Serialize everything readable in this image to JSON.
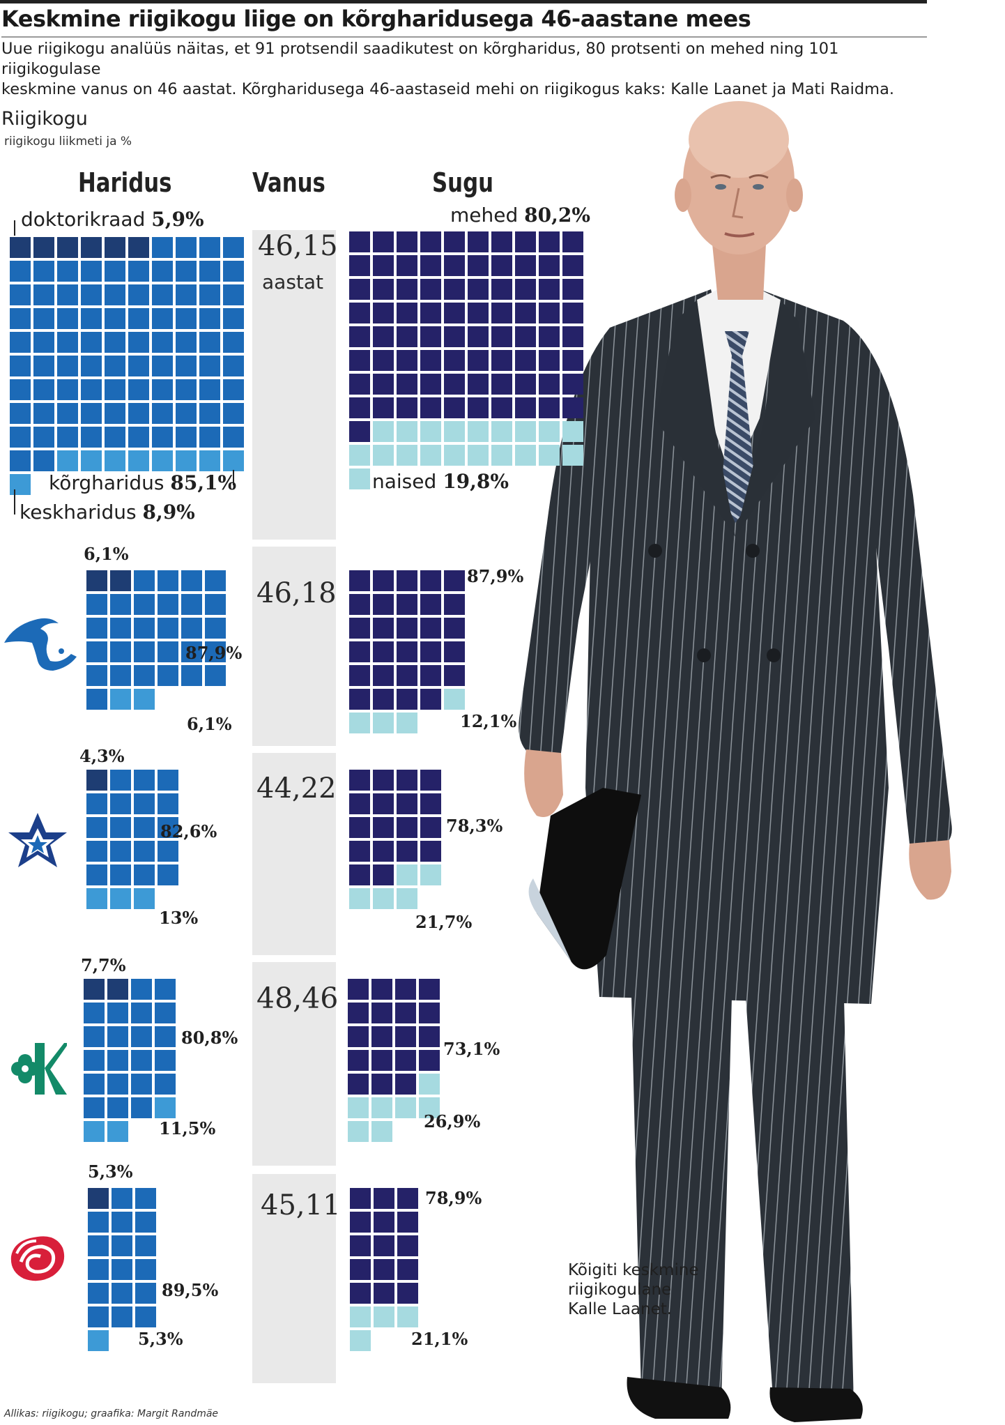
{
  "title": "Keskmine riigikogu liige on kõrgharidusega 46-aastane mees",
  "subtitle_line1": "Uue riigikogu analüüs näitas, et 91 protsendil saadikutest on kõrgharidus, 80 protsenti on mehed ning 101 riigikogulase",
  "subtitle_line2": "keskmine vanus on 46 aastat. Kõrgharidusega 46-aastaseid mehi on riigikogus kaks: Kalle Laanet ja Mati Raidma.",
  "section_title": "Riigikogu",
  "section_sub": "riigikogu liikmeti ja %",
  "headers": {
    "education": "Haridus",
    "age": "Vanus",
    "gender": "Sugu"
  },
  "colors": {
    "doctor": "#1e3d73",
    "higher": "#1c6ab7",
    "secondary": "#3d9ad6",
    "men": "#252268",
    "women": "#a6dae0",
    "age_panel": "#e9e9e9"
  },
  "main_labels": {
    "doctor_name": "doktorikraad",
    "doctor_value": "5,9%",
    "higher_name": "kõrgharidus",
    "higher_value": "85,1%",
    "secondary_name": "keskharidus",
    "secondary_value": "8,9%",
    "men_name": "mehed",
    "men_value": "80,2%",
    "women_name": "naised",
    "women_value": "19,8%",
    "age_value": "46,15",
    "age_unit": "aastat"
  },
  "party_labels": [
    {
      "logo": "reform-party-squirrel-logo",
      "age": "46,18",
      "edu_top": "6,1%",
      "edu_mid": "87,9%",
      "edu_bot": "6,1%",
      "men": "87,9%",
      "women": "12,1%"
    },
    {
      "logo": "irl-party-star-logo",
      "age": "44,22",
      "edu_top": "4,3%",
      "edu_mid": "82,6%",
      "edu_bot": "13%",
      "men": "78,3%",
      "women": "21,7%"
    },
    {
      "logo": "centre-party-k-logo",
      "age": "48,46",
      "edu_top": "7,7%",
      "edu_mid": "80,8%",
      "edu_bot": "11,5%",
      "men": "73,1%",
      "women": "26,9%"
    },
    {
      "logo": "social-democrats-rose-logo",
      "age": "45,11",
      "edu_top": "5,3%",
      "edu_mid": "89,5%",
      "edu_bot": "5,3%",
      "men": "78,9%",
      "women": "21,1%"
    }
  ],
  "chart_data": {
    "type": "waffle",
    "unit": "riigikogu liikmed",
    "groups": [
      {
        "group": "Riigikogu",
        "average_age": 46.15,
        "education": {
          "doktorikraad": 6,
          "kõrgharidus": 86,
          "keskharidus": 9
        },
        "education_pct": {
          "doktorikraad": 5.9,
          "kõrgharidus": 85.1,
          "keskharidus": 8.9
        },
        "gender": {
          "mehed": 81,
          "naised": 20
        },
        "gender_pct": {
          "mehed": 80.2,
          "naised": 19.8
        }
      },
      {
        "group": "party-1",
        "average_age": 46.18,
        "education": {
          "doktorikraad": 2,
          "kõrgharidus": 29,
          "keskharidus": 2
        },
        "education_pct": {
          "doktorikraad": 6.1,
          "kõrgharidus": 87.9,
          "keskharidus": 6.1
        },
        "gender": {
          "mehed": 29,
          "naised": 4
        },
        "gender_pct": {
          "mehed": 87.9,
          "naised": 12.1
        }
      },
      {
        "group": "party-2",
        "average_age": 44.22,
        "education": {
          "doktorikraad": 1,
          "kõrgharidus": 19,
          "keskharidus": 3
        },
        "education_pct": {
          "doktorikraad": 4.3,
          "kõrgharidus": 82.6,
          "keskharidus": 13
        },
        "gender": {
          "mehed": 18,
          "naised": 5
        },
        "gender_pct": {
          "mehed": 78.3,
          "naised": 21.7
        }
      },
      {
        "group": "party-3",
        "average_age": 48.46,
        "education": {
          "doktorikraad": 2,
          "kõrgharidus": 21,
          "keskharidus": 3
        },
        "education_pct": {
          "doktorikraad": 7.7,
          "kõrgharidus": 80.8,
          "keskharidus": 11.5
        },
        "gender": {
          "mehed": 19,
          "naised": 7
        },
        "gender_pct": {
          "mehed": 73.1,
          "naised": 26.9
        }
      },
      {
        "group": "party-4",
        "average_age": 45.11,
        "education": {
          "doktorikraad": 1,
          "kõrgharidus": 17,
          "keskharidus": 1
        },
        "education_pct": {
          "doktorikraad": 5.3,
          "kõrgharidus": 89.5,
          "keskharidus": 5.3
        },
        "gender": {
          "mehed": 15,
          "naised": 4
        },
        "gender_pct": {
          "mehed": 78.9,
          "naised": 21.1
        }
      }
    ]
  },
  "caption_line1": "Kõigiti keskmine",
  "caption_line2": "riigikogulane",
  "caption_line3": "Kalle Laanet.",
  "credit": "Allikas: riigikogu; graafika: Margit Randmäe"
}
